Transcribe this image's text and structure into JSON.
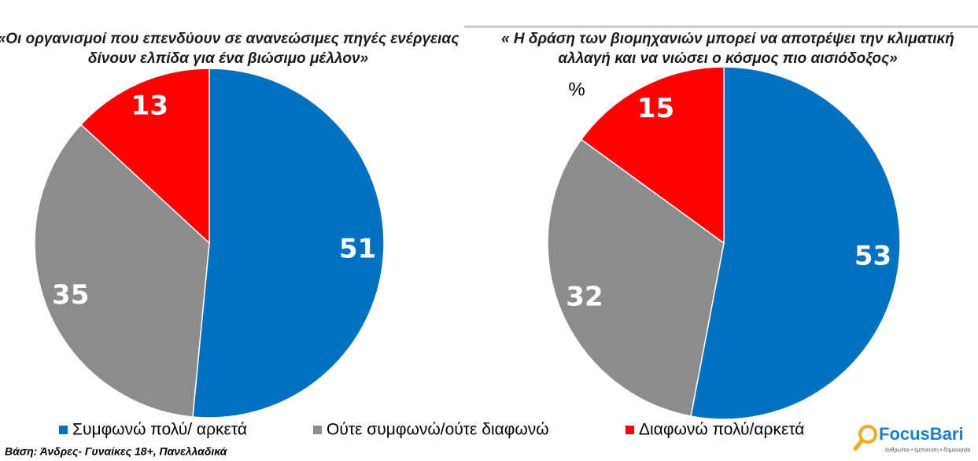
{
  "chart_data": [
    {
      "type": "pie",
      "title": [
        "«Οι οργανισμοί που επενδύουν σε ανανεώσιμες πηγές ενέργειας",
        "δίνουν ελπίδα για ένα βιώσιμο μέλλον»"
      ],
      "values": [
        51,
        35,
        13
      ],
      "colors": [
        "#0070c0",
        "#8c8c8c",
        "#ff0000"
      ]
    },
    {
      "type": "pie",
      "title": [
        "« Η δράση των βιομηχανιών μπορεί να αποτρέψει την κλιματική",
        "αλλαγή και να νιώσει ο κόσμος πιο αισιόδοξος»"
      ],
      "values": [
        53,
        32,
        15
      ],
      "colors": [
        "#0070c0",
        "#8c8c8c",
        "#ff0000"
      ]
    }
  ],
  "unit_label": "%",
  "legend": [
    {
      "name": "Συμφωνώ πολύ/ αρκετά",
      "color": "#0070c0"
    },
    {
      "name": "Ούτε συμφωνώ/ούτε διαφωνώ",
      "color": "#8c8c8c"
    },
    {
      "name": "Διαφωνώ πολύ/αρκετά",
      "color": "#ff0000"
    }
  ],
  "footnote": "Βάση: Άνδρες- Γυναίκες 18+, Πανελλαδικά",
  "logo": {
    "name": "FocusBari",
    "tagline": "άνθρωποι • έμπνευση • δημιουργία"
  }
}
